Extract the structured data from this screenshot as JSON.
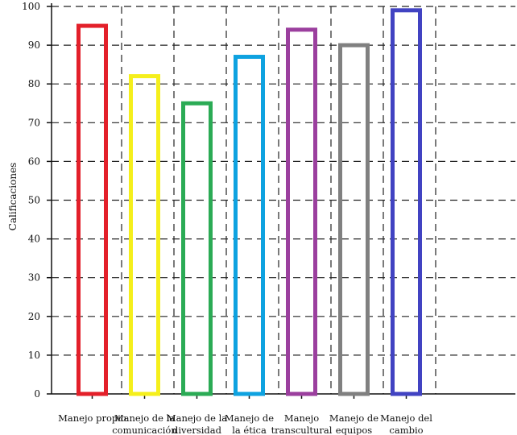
{
  "chart_data": {
    "type": "bar",
    "title": "",
    "xlabel": "",
    "ylabel": "Calificaciones",
    "ylim": [
      0,
      100
    ],
    "yticks": [
      0,
      10,
      20,
      30,
      40,
      50,
      60,
      70,
      80,
      90,
      100
    ],
    "grid": true,
    "categories": [
      [
        "Manejo propio"
      ],
      [
        "Manejo de la",
        "comunicación"
      ],
      [
        "Manejo de la",
        "diversidad"
      ],
      [
        "Manejo de",
        "la ética"
      ],
      [
        "Manejo",
        "transcultural"
      ],
      [
        "Manejo de",
        "equipos"
      ],
      [
        "Manejo del",
        "cambio"
      ]
    ],
    "values": [
      95,
      82,
      75,
      87,
      94,
      90,
      99
    ],
    "colors": [
      "#e3202a",
      "#f5ef1c",
      "#2bab55",
      "#0ea2e0",
      "#9b3f9e",
      "#808080",
      "#4143c2"
    ]
  }
}
